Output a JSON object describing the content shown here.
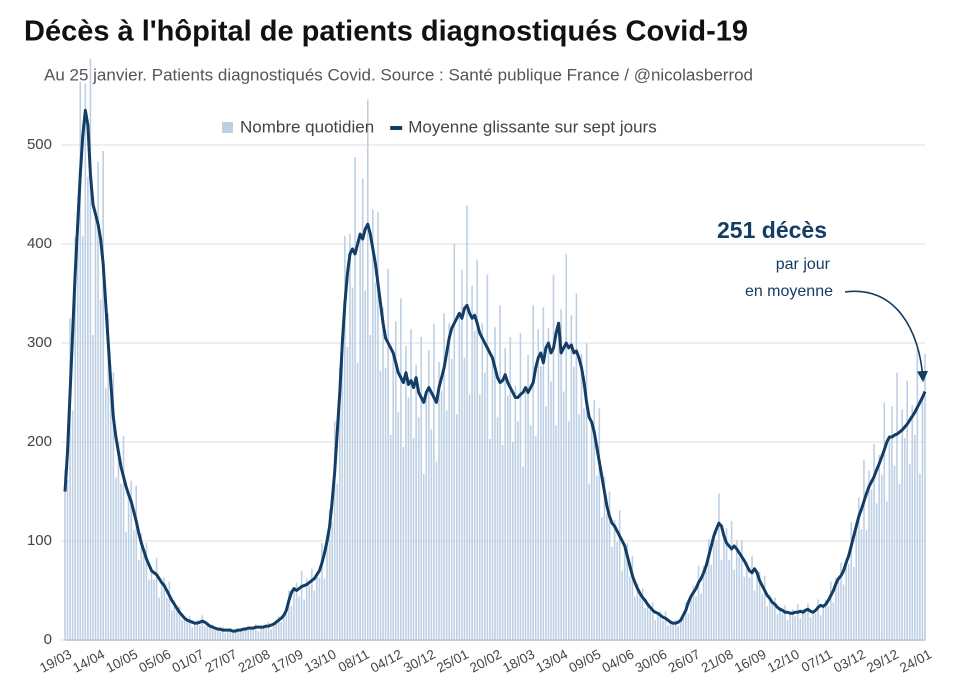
{
  "chart_data": {
    "type": "bar",
    "title": "Décès à l'hôpital de patients diagnostiqués Covid-19",
    "subtitle": "Au 25 janvier. Patients diagnostiqués Covid. Source : Santé publique France / @nicolasberrod",
    "annotation": {
      "title": "251 décès",
      "lines": [
        "par jour",
        "en moyenne"
      ]
    },
    "legend": "top",
    "grid": true,
    "ylim": [
      0,
      600
    ],
    "yticks": [
      0,
      100,
      200,
      300,
      400,
      500
    ],
    "categories": [
      "19/03",
      null,
      null,
      null,
      null,
      null,
      null,
      null,
      null,
      null,
      null,
      null,
      null,
      "14/04",
      null,
      null,
      null,
      null,
      null,
      null,
      null,
      null,
      null,
      null,
      null,
      null,
      "10/05",
      null,
      null,
      null,
      null,
      null,
      null,
      null,
      null,
      null,
      null,
      null,
      null,
      "05/06",
      null,
      null,
      null,
      null,
      null,
      null,
      null,
      null,
      null,
      null,
      null,
      null,
      "01/07",
      null,
      null,
      null,
      null,
      null,
      null,
      null,
      null,
      null,
      null,
      null,
      null,
      "27/07",
      null,
      null,
      null,
      null,
      null,
      null,
      null,
      null,
      null,
      null,
      null,
      null,
      "22/08",
      null,
      null,
      null,
      null,
      null,
      null,
      null,
      null,
      null,
      null,
      null,
      null,
      "17/09",
      null,
      null,
      null,
      null,
      null,
      null,
      null,
      null,
      null,
      null,
      null,
      null,
      "13/10",
      null,
      null,
      null,
      null,
      null,
      null,
      null,
      null,
      null,
      null,
      null,
      null,
      "08/11",
      null,
      null,
      null,
      null,
      null,
      null,
      null,
      null,
      null,
      null,
      null,
      null,
      "04/12",
      null,
      null,
      null,
      null,
      null,
      null,
      null,
      null,
      null,
      null,
      null,
      null,
      "30/12",
      null,
      null,
      null,
      null,
      null,
      null,
      null,
      null,
      null,
      null,
      null,
      null,
      "25/01",
      null,
      null,
      null,
      null,
      null,
      null,
      null,
      null,
      null,
      null,
      null,
      null,
      "20/02",
      null,
      null,
      null,
      null,
      null,
      null,
      null,
      null,
      null,
      null,
      null,
      null,
      "18/03",
      null,
      null,
      null,
      null,
      null,
      null,
      null,
      null,
      null,
      null,
      null,
      null,
      "13/04",
      null,
      null,
      null,
      null,
      null,
      null,
      null,
      null,
      null,
      null,
      null,
      null,
      "09/05",
      null,
      null,
      null,
      null,
      null,
      null,
      null,
      null,
      null,
      null,
      null,
      null,
      "04/06",
      null,
      null,
      null,
      null,
      null,
      null,
      null,
      null,
      null,
      null,
      null,
      null,
      "30/06",
      null,
      null,
      null,
      null,
      null,
      null,
      null,
      null,
      null,
      null,
      null,
      null,
      "26/07",
      null,
      null,
      null,
      null,
      null,
      null,
      null,
      null,
      null,
      null,
      null,
      null,
      "21/08",
      null,
      null,
      null,
      null,
      null,
      null,
      null,
      null,
      null,
      null,
      null,
      null,
      "16/09",
      null,
      null,
      null,
      null,
      null,
      null,
      null,
      null,
      null,
      null,
      null,
      null,
      "12/10",
      null,
      null,
      null,
      null,
      null,
      null,
      null,
      null,
      null,
      null,
      null,
      null,
      "07/11",
      null,
      null,
      null,
      null,
      null,
      null,
      null,
      null,
      null,
      null,
      null,
      null,
      "03/12",
      null,
      null,
      null,
      null,
      null,
      null,
      null,
      null,
      null,
      null,
      null,
      null,
      "29/12",
      null,
      null,
      null,
      null,
      null,
      null,
      null,
      null,
      null,
      null,
      null,
      null,
      "24/01"
    ],
    "series": [
      {
        "name": "Nombre quotidien",
        "type": "bar",
        "color": "#bccfe4",
        "values": [
          172,
          162,
          325,
          232,
          407,
          399,
          564,
          408,
          562,
          468,
          587,
          308,
          430,
          483,
          344,
          494,
          255,
          330,
          247,
          270,
          164,
          200,
          158,
          206,
          109,
          147,
          161,
          111,
          156,
          81,
          108,
          86,
          98,
          61,
          74,
          61,
          83,
          43,
          58,
          63,
          43,
          59,
          30,
          40,
          30,
          34,
          20,
          23,
          18,
          24,
          13,
          17,
          20,
          15,
          25,
          14,
          18,
          13,
          16,
          10,
          12,
          10,
          13,
          7,
          10,
          12,
          8,
          12,
          8,
          11,
          10,
          13,
          10,
          13,
          11,
          16,
          9,
          13,
          15,
          12,
          18,
          11,
          18,
          17,
          24,
          18,
          26,
          27,
          50,
          34,
          52,
          58,
          44,
          70,
          41,
          62,
          55,
          72,
          50,
          69,
          63,
          98,
          62,
          100,
          132,
          119,
          221,
          158,
          275,
          285,
          408,
          296,
          410,
          356,
          488,
          280,
          410,
          466,
          353,
          546,
          308,
          435,
          361,
          432,
          272,
          336,
          275,
          375,
          207,
          290,
          322,
          230,
          345,
          195,
          297,
          245,
          314,
          204,
          278,
          225,
          306,
          168,
          250,
          293,
          213,
          319,
          180,
          281,
          252,
          330,
          232,
          320,
          284,
          400,
          228,
          330,
          374,
          285,
          439,
          248,
          358,
          312,
          384,
          248,
          320,
          270,
          369,
          203,
          285,
          316,
          225,
          338,
          197,
          295,
          247,
          306,
          200,
          257,
          221,
          310,
          175,
          255,
          288,
          217,
          338,
          206,
          314,
          276,
          336,
          236,
          315,
          261,
          369,
          217,
          320,
          334,
          251,
          390,
          221,
          328,
          276,
          350,
          228,
          289,
          234,
          300,
          158,
          220,
          242,
          166,
          234,
          124,
          165,
          128,
          150,
          94,
          121,
          99,
          131,
          70,
          95,
          98,
          64,
          85,
          44,
          57,
          45,
          52,
          32,
          38,
          30,
          38,
          20,
          27,
          29,
          20,
          29,
          15,
          20,
          16,
          20,
          14,
          21,
          23,
          38,
          27,
          44,
          55,
          44,
          75,
          47,
          75,
          71,
          102,
          76,
          110,
          101,
          148,
          81,
          105,
          113,
          81,
          120,
          71,
          101,
          84,
          101,
          64,
          79,
          63,
          85,
          50,
          68,
          69,
          47,
          65,
          34,
          46,
          36,
          43,
          26,
          33,
          27,
          35,
          20,
          27,
          31,
          24,
          36,
          22,
          31,
          29,
          37,
          23,
          29,
          27,
          41,
          25,
          34,
          41,
          34,
          59,
          38,
          63,
          59,
          78,
          56,
          82,
          77,
          119,
          74,
          115,
          144,
          112,
          182,
          111,
          171,
          152,
          198,
          138,
          187,
          167,
          240,
          140,
          205,
          236,
          176,
          270,
          158,
          233,
          204,
          262,
          178,
          237,
          207,
          294,
          168,
          245,
          289
        ]
      },
      {
        "name": "Moyenne glissante sur sept jours",
        "type": "line",
        "color": "#143d66",
        "values": [
          150,
          190,
          250,
          310,
          370,
          420,
          470,
          510,
          535,
          520,
          470,
          440,
          430,
          420,
          405,
          380,
          340,
          300,
          260,
          225,
          205,
          190,
          175,
          165,
          155,
          147,
          140,
          130,
          120,
          108,
          98,
          90,
          82,
          76,
          70,
          68,
          66,
          62,
          58,
          55,
          50,
          45,
          40,
          36,
          32,
          28,
          25,
          22,
          20,
          19,
          18,
          17,
          17,
          18,
          19,
          18,
          16,
          14,
          13,
          12,
          11,
          11,
          10,
          10,
          10,
          10,
          9,
          9,
          10,
          10,
          11,
          11,
          12,
          12,
          12,
          13,
          13,
          13,
          13,
          14,
          14,
          15,
          16,
          18,
          20,
          22,
          25,
          30,
          40,
          48,
          52,
          50,
          52,
          54,
          55,
          56,
          58,
          60,
          62,
          66,
          70,
          78,
          88,
          100,
          115,
          140,
          170,
          210,
          250,
          300,
          340,
          370,
          390,
          395,
          390,
          400,
          410,
          405,
          415,
          420,
          410,
          395,
          380,
          360,
          340,
          320,
          305,
          300,
          295,
          290,
          280,
          270,
          265,
          260,
          270,
          258,
          262,
          255,
          265,
          250,
          245,
          240,
          250,
          255,
          250,
          245,
          240,
          255,
          265,
          275,
          290,
          305,
          315,
          320,
          325,
          330,
          325,
          335,
          338,
          330,
          325,
          328,
          320,
          310,
          305,
          300,
          295,
          290,
          285,
          275,
          265,
          260,
          262,
          268,
          260,
          255,
          250,
          245,
          245,
          248,
          250,
          255,
          250,
          255,
          260,
          275,
          285,
          290,
          280,
          295,
          300,
          290,
          295,
          310,
          320,
          290,
          295,
          300,
          295,
          298,
          290,
          292,
          285,
          275,
          260,
          240,
          225,
          220,
          210,
          195,
          180,
          165,
          150,
          135,
          125,
          118,
          115,
          110,
          105,
          100,
          95,
          85,
          75,
          65,
          58,
          52,
          47,
          43,
          40,
          36,
          33,
          30,
          28,
          27,
          25,
          23,
          22,
          20,
          18,
          17,
          17,
          18,
          20,
          25,
          30,
          38,
          44,
          48,
          52,
          58,
          62,
          68,
          75,
          85,
          95,
          105,
          112,
          118,
          115,
          105,
          98,
          95,
          92,
          95,
          92,
          88,
          84,
          80,
          75,
          70,
          68,
          72,
          68,
          60,
          55,
          50,
          45,
          42,
          38,
          36,
          33,
          31,
          30,
          28,
          28,
          27,
          27,
          28,
          28,
          29,
          28,
          30,
          31,
          29,
          28,
          30,
          33,
          35,
          34,
          36,
          40,
          45,
          50,
          57,
          62,
          65,
          70,
          78,
          85,
          95,
          105,
          115,
          125,
          132,
          140,
          148,
          155,
          160,
          165,
          172,
          178,
          185,
          192,
          200,
          205,
          205,
          207,
          208,
          210,
          212,
          215,
          218,
          222,
          226,
          230,
          235,
          240,
          245,
          251
        ]
      }
    ]
  }
}
